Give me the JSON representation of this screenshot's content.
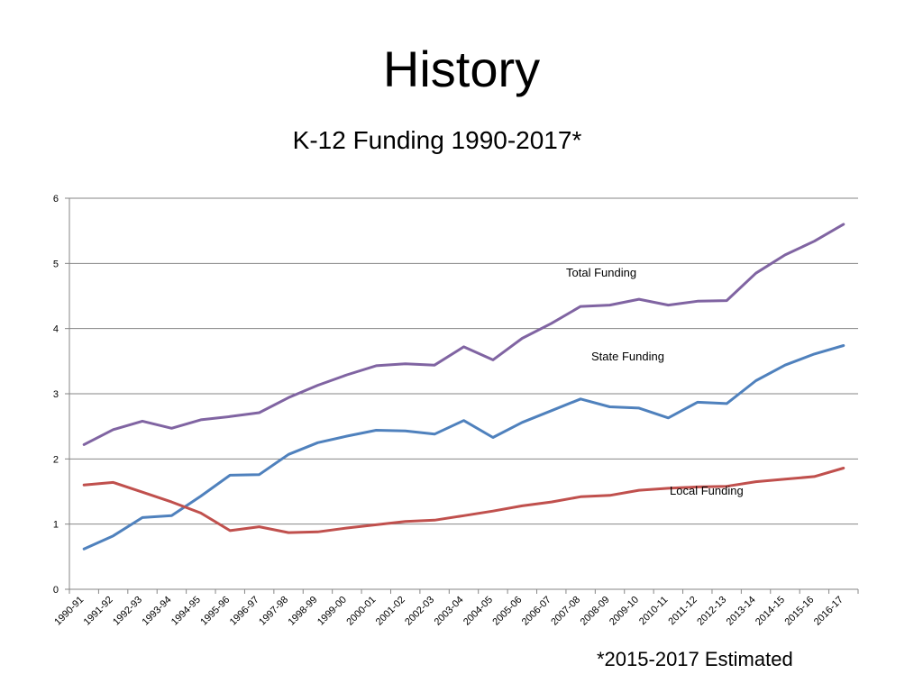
{
  "slide": {
    "title": "History",
    "footnote": "*2015-2017 Estimated"
  },
  "chart_data": {
    "type": "line",
    "title": "K-12 Funding 1990-2017*",
    "xlabel": "",
    "ylabel": "",
    "ylim": [
      0,
      6
    ],
    "yticks": [
      0,
      1,
      2,
      3,
      4,
      5,
      6
    ],
    "grid": true,
    "categories": [
      "1990-91",
      "1991-92",
      "1992-93",
      "1993-94",
      "1994-95",
      "1995-96",
      "1996-97",
      "1997-98",
      "1998-99",
      "1999-00",
      "2000-01",
      "2001-02",
      "2002-03",
      "2003-04",
      "2004-05",
      "2005-06",
      "2006-07",
      "2007-08",
      "2008-09",
      "2009-10",
      "2010-11",
      "2011-12",
      "2012-13",
      "2013-14",
      "2014-15",
      "2015-16",
      "2016-17"
    ],
    "series": [
      {
        "name": "Total Funding",
        "color": "#8064a2",
        "values": [
          2.22,
          2.45,
          2.58,
          2.47,
          2.6,
          2.65,
          2.71,
          2.94,
          3.13,
          3.29,
          3.43,
          3.46,
          3.44,
          3.72,
          3.52,
          3.85,
          4.08,
          4.34,
          4.36,
          4.45,
          4.36,
          4.42,
          4.43,
          4.85,
          5.13,
          5.34,
          5.6
        ]
      },
      {
        "name": "State Funding",
        "color": "#4f81bd",
        "values": [
          0.62,
          0.82,
          1.1,
          1.13,
          1.43,
          1.75,
          1.76,
          2.07,
          2.25,
          2.35,
          2.44,
          2.43,
          2.38,
          2.59,
          2.33,
          2.56,
          2.74,
          2.92,
          2.8,
          2.78,
          2.63,
          2.87,
          2.85,
          3.2,
          3.44,
          3.61,
          3.74
        ]
      },
      {
        "name": "Local Funding",
        "color": "#c0504d",
        "values": [
          1.6,
          1.64,
          1.49,
          1.34,
          1.17,
          0.9,
          0.96,
          0.87,
          0.88,
          0.94,
          0.99,
          1.04,
          1.06,
          1.13,
          1.2,
          1.28,
          1.34,
          1.42,
          1.44,
          1.52,
          1.55,
          1.57,
          1.58,
          1.65,
          1.69,
          1.73,
          1.86
        ]
      }
    ],
    "annotations": [
      {
        "text": "Total Funding",
        "series": "Total Funding"
      },
      {
        "text": "State Funding",
        "series": "State Funding"
      },
      {
        "text": "Local Funding",
        "series": "Local Funding"
      }
    ]
  }
}
